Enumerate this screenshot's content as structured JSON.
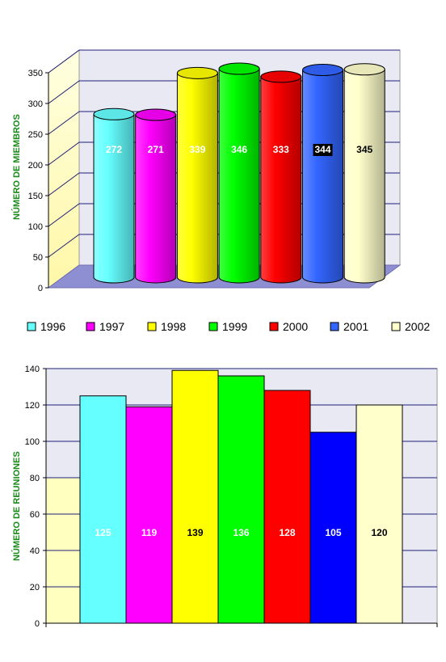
{
  "chart_data": [
    {
      "type": "bar",
      "style": "3d-cylinder",
      "categories": [
        "1996",
        "1997",
        "1998",
        "1999",
        "2000",
        "2001",
        "2002"
      ],
      "values": [
        272,
        271,
        339,
        346,
        333,
        344,
        345
      ],
      "value_labels": [
        "272",
        "271",
        "339",
        "346",
        "333",
        "344",
        "345"
      ],
      "colors": [
        "#66ffff",
        "#ff00ff",
        "#ffff00",
        "#00ff00",
        "#ff0000",
        "#3366ff",
        "#ffffcc"
      ],
      "label_colors": [
        "#ffffff",
        "#ffffff",
        "#ffffff",
        "#ffffff",
        "#ffffff",
        "#ffffff",
        "#000000"
      ],
      "highlight_label_index": 5,
      "ylabel": "NÚMERO DE MIEMBROS",
      "ylim": [
        0,
        350
      ],
      "yticks": [
        "0",
        "50",
        "100",
        "150",
        "200",
        "250",
        "300",
        "350"
      ],
      "grid": true,
      "legend": "bottom"
    },
    {
      "type": "bar",
      "categories": [
        "1996",
        "1997",
        "1998",
        "1999",
        "2000",
        "2001",
        "2002"
      ],
      "values": [
        125,
        119,
        139,
        136,
        128,
        105,
        120
      ],
      "value_labels": [
        "125",
        "119",
        "139",
        "136",
        "128",
        "105",
        "120"
      ],
      "colors": [
        "#66ffff",
        "#ff00ff",
        "#ffff00",
        "#00ff00",
        "#ff0000",
        "#0000ff",
        "#ffffcc"
      ],
      "label_colors": [
        "#ffffff",
        "#ffffff",
        "#000000",
        "#ffffff",
        "#ffffff",
        "#ffffff",
        "#000000"
      ],
      "ylabel": "NÚMERO DE REUNIONES",
      "ylim": [
        0,
        140
      ],
      "yticks": [
        "0",
        "20",
        "40",
        "60",
        "80",
        "100",
        "120",
        "140"
      ],
      "grid": true,
      "legend": "none"
    }
  ]
}
